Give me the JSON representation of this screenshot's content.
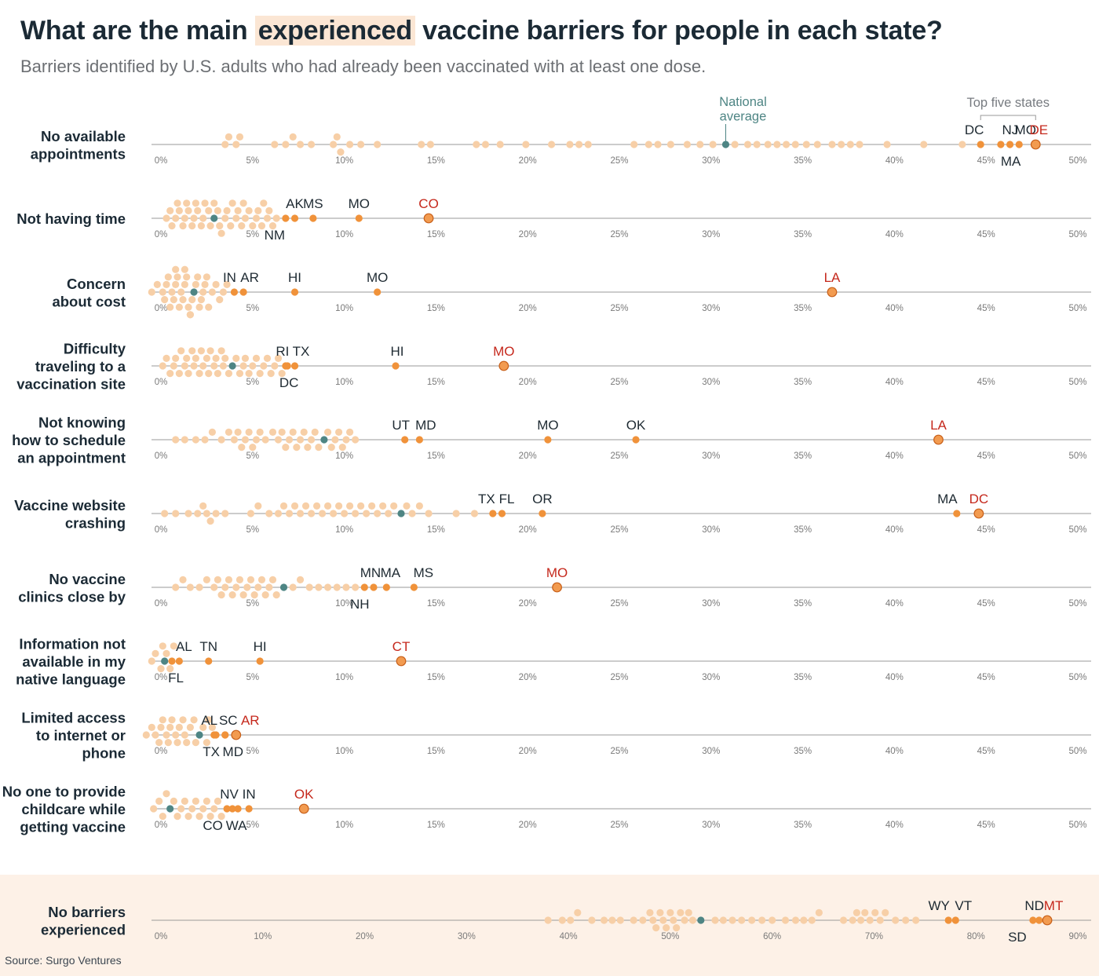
{
  "title": {
    "before": "What are the main ",
    "highlight": "experienced",
    "after": " vaccine barriers for people in each state?"
  },
  "subtitle": "Barriers identified by U.S. adults who had already been vaccinated with at least one dose.",
  "source": "Source: Surgo Ventures",
  "colors": {
    "dot": "#f7cfa7",
    "highlight": "#f0923a",
    "top": "#f29b50",
    "top_stroke": "#c8601a",
    "national": "#4e8584",
    "label": "#1e2a32",
    "top_label": "#c5281c",
    "axis": "#9a9a9a",
    "tick": "#7a7a7a",
    "band": "#fdf1e7"
  },
  "annotations": {
    "national_average": [
      "National",
      "average"
    ],
    "top_five": "Top five states"
  },
  "chart_data": [
    {
      "type": "scatter",
      "subtype": "beeswarm",
      "label": [
        "No available",
        "appointments"
      ],
      "xlim": [
        0,
        50
      ],
      "ticks": [
        0,
        5,
        10,
        15,
        20,
        25,
        30,
        35,
        40,
        45,
        50
      ],
      "national_average": 30.8,
      "values": [
        3.5,
        3.7,
        4.1,
        4.3,
        6.2,
        6.8,
        7.2,
        7.6,
        8.2,
        9.4,
        9.6,
        9.8,
        10.3,
        10.9,
        11.8,
        14.2,
        14.7,
        17.2,
        17.7,
        18.5,
        19.9,
        21.3,
        22.3,
        22.8,
        23.3,
        25.8,
        26.6,
        27.1,
        27.8,
        28.7,
        29.4,
        30.1,
        31.3,
        32.0,
        32.5,
        33.1,
        33.6,
        34.1,
        34.6,
        35.2,
        35.8,
        36.6,
        37.1,
        37.6,
        38.1,
        39.6,
        41.6,
        43.7
      ],
      "highlighted": [
        {
          "state": "DC",
          "value": 44.7
        },
        {
          "state": "NJ",
          "value": 45.8
        },
        {
          "state": "MA",
          "value": 46.3
        },
        {
          "state": "MO",
          "value": 46.8
        },
        {
          "state": "DE",
          "value": 47.7,
          "top": true
        }
      ]
    },
    {
      "type": "scatter",
      "subtype": "beeswarm",
      "label": [
        "Not having time"
      ],
      "xlim": [
        0,
        50
      ],
      "ticks": [
        0,
        5,
        10,
        15,
        20,
        25,
        30,
        35,
        40,
        45,
        50
      ],
      "national_average": 2.9,
      "values": [
        0.3,
        0.5,
        0.6,
        0.8,
        0.9,
        1.0,
        1.2,
        1.3,
        1.4,
        1.5,
        1.7,
        1.8,
        1.9,
        2.0,
        2.2,
        2.3,
        2.4,
        2.6,
        2.7,
        2.9,
        3.1,
        3.2,
        3.3,
        3.5,
        3.6,
        3.8,
        3.9,
        4.1,
        4.2,
        4.4,
        4.5,
        4.6,
        4.8,
        5.0,
        5.2,
        5.3,
        5.5,
        5.6,
        5.8,
        5.9,
        6.1,
        6.3
      ],
      "highlighted": [
        {
          "state": "NM",
          "value": 6.8
        },
        {
          "state": "AK",
          "value": 7.3
        },
        {
          "state": "MS",
          "value": 8.3
        },
        {
          "state": "MO",
          "value": 10.8
        },
        {
          "state": "CO",
          "value": 14.6,
          "top": true
        }
      ]
    },
    {
      "type": "scatter",
      "subtype": "beeswarm",
      "label": [
        "Concern",
        "about cost"
      ],
      "xlim": [
        0,
        50
      ],
      "ticks": [
        0,
        5,
        10,
        15,
        20,
        25,
        30,
        35,
        40,
        45,
        50
      ],
      "national_average": 1.8,
      "values": [
        -0.5,
        -0.2,
        0.1,
        0.2,
        0.3,
        0.4,
        0.5,
        0.6,
        0.7,
        0.8,
        0.8,
        0.9,
        1.0,
        1.1,
        1.2,
        1.3,
        1.3,
        1.4,
        1.5,
        1.6,
        1.6,
        1.7,
        1.9,
        2.0,
        2.1,
        2.2,
        2.3,
        2.4,
        2.5,
        2.6,
        2.8,
        3.0,
        3.2,
        3.4,
        3.6
      ],
      "highlighted": [
        {
          "state": "IN",
          "value": 4.0
        },
        {
          "state": "AR",
          "value": 4.5
        },
        {
          "state": "HI",
          "value": 7.3
        },
        {
          "state": "MO",
          "value": 11.8
        },
        {
          "state": "LA",
          "value": 36.6,
          "top": true
        }
      ]
    },
    {
      "type": "scatter",
      "subtype": "beeswarm",
      "label": [
        "Difficulty",
        "traveling to a",
        "vaccination site"
      ],
      "xlim": [
        0,
        50
      ],
      "ticks": [
        0,
        5,
        10,
        15,
        20,
        25,
        30,
        35,
        40,
        45,
        50
      ],
      "national_average": 3.9,
      "values": [
        0.1,
        0.3,
        0.5,
        0.7,
        0.8,
        1.0,
        1.1,
        1.3,
        1.4,
        1.5,
        1.7,
        1.8,
        1.9,
        2.1,
        2.2,
        2.3,
        2.5,
        2.6,
        2.7,
        2.9,
        3.0,
        3.1,
        3.3,
        3.4,
        3.5,
        3.7,
        4.1,
        4.3,
        4.5,
        4.6,
        4.8,
        5.0,
        5.2,
        5.4,
        5.6,
        5.8,
        6.0,
        6.2,
        6.4,
        6.6
      ],
      "highlighted": [
        {
          "state": "RI",
          "value": 6.8
        },
        {
          "state": "DC",
          "value": 6.9
        },
        {
          "state": "TX",
          "value": 7.3
        },
        {
          "state": "HI",
          "value": 12.8
        },
        {
          "state": "MO",
          "value": 18.7,
          "top": true
        }
      ]
    },
    {
      "type": "scatter",
      "subtype": "beeswarm",
      "label": [
        "Not knowing",
        "how to schedule",
        "an appointment"
      ],
      "xlim": [
        0,
        50
      ],
      "ticks": [
        0,
        5,
        10,
        15,
        20,
        25,
        30,
        35,
        40,
        45,
        50
      ],
      "national_average": 8.9,
      "values": [
        0.8,
        1.3,
        1.9,
        2.4,
        2.8,
        3.3,
        3.7,
        4.0,
        4.2,
        4.4,
        4.6,
        4.8,
        5.0,
        5.2,
        5.4,
        5.7,
        6.1,
        6.4,
        6.6,
        6.8,
        7.0,
        7.2,
        7.4,
        7.6,
        7.8,
        8.0,
        8.2,
        8.4,
        8.6,
        9.1,
        9.3,
        9.5,
        9.7,
        9.9,
        10.1,
        10.3,
        10.6
      ],
      "highlighted": [
        {
          "state": "UT",
          "value": 13.3
        },
        {
          "state": "MD",
          "value": 14.1
        },
        {
          "state": "MO",
          "value": 21.1
        },
        {
          "state": "OK",
          "value": 25.9
        },
        {
          "state": "LA",
          "value": 42.4,
          "top": true
        }
      ]
    },
    {
      "type": "scatter",
      "subtype": "beeswarm",
      "label": [
        "Vaccine website",
        "crashing"
      ],
      "xlim": [
        0,
        50
      ],
      "ticks": [
        0,
        5,
        10,
        15,
        20,
        25,
        30,
        35,
        40,
        45,
        50
      ],
      "national_average": 13.1,
      "values": [
        0.2,
        0.8,
        1.5,
        2.0,
        2.3,
        2.5,
        2.7,
        3.0,
        3.5,
        4.9,
        5.3,
        5.9,
        6.4,
        6.7,
        7.0,
        7.3,
        7.6,
        7.9,
        8.2,
        8.5,
        8.8,
        9.1,
        9.4,
        9.7,
        10.0,
        10.3,
        10.6,
        10.9,
        11.2,
        11.5,
        11.8,
        12.1,
        12.4,
        12.7,
        13.4,
        13.7,
        14.1,
        14.6,
        16.1,
        17.1
      ],
      "highlighted": [
        {
          "state": "TX",
          "value": 18.1
        },
        {
          "state": "FL",
          "value": 18.6
        },
        {
          "state": "OR",
          "value": 20.8
        },
        {
          "state": "MA",
          "value": 43.4
        },
        {
          "state": "DC",
          "value": 44.6,
          "top": true
        }
      ]
    },
    {
      "type": "scatter",
      "subtype": "beeswarm",
      "label": [
        "No vaccine",
        "clinics close by"
      ],
      "xlim": [
        0,
        50
      ],
      "ticks": [
        0,
        5,
        10,
        15,
        20,
        25,
        30,
        35,
        40,
        45,
        50
      ],
      "national_average": 6.7,
      "values": [
        0.8,
        1.2,
        1.6,
        2.1,
        2.5,
        2.9,
        3.1,
        3.3,
        3.5,
        3.7,
        3.9,
        4.1,
        4.3,
        4.5,
        4.7,
        4.9,
        5.1,
        5.3,
        5.5,
        5.7,
        5.9,
        6.1,
        6.3,
        7.2,
        7.6,
        8.1,
        8.6,
        9.1,
        9.6,
        10.1,
        10.6
      ],
      "highlighted": [
        {
          "state": "NH",
          "value": 11.1
        },
        {
          "state": "MN",
          "value": 11.6
        },
        {
          "state": "MA",
          "value": 12.3
        },
        {
          "state": "MS",
          "value": 13.8
        },
        {
          "state": "MO",
          "value": 21.6,
          "top": true
        }
      ]
    },
    {
      "type": "scatter",
      "subtype": "beeswarm",
      "label": [
        "Information not",
        "available in my",
        "native language"
      ],
      "xlim": [
        0,
        50
      ],
      "ticks": [
        0,
        5,
        10,
        15,
        20,
        25,
        30,
        35,
        40,
        45,
        50
      ],
      "national_average": 0.2,
      "values": [
        -0.5,
        -0.3,
        0.0,
        0.1,
        0.3,
        0.5,
        0.7
      ],
      "highlighted": [
        {
          "state": "FL",
          "value": 0.6
        },
        {
          "state": "AL",
          "value": 1.0
        },
        {
          "state": "TN",
          "value": 2.6
        },
        {
          "state": "HI",
          "value": 5.4
        },
        {
          "state": "CT",
          "value": 13.1,
          "top": true
        }
      ]
    },
    {
      "type": "scatter",
      "subtype": "beeswarm",
      "label": [
        "Limited access",
        "to internet or",
        "phone"
      ],
      "xlim": [
        0,
        50
      ],
      "ticks": [
        0,
        5,
        10,
        15,
        20,
        25,
        30,
        35,
        40,
        45,
        50
      ],
      "national_average": 2.1,
      "values": [
        -0.8,
        -0.5,
        -0.3,
        -0.1,
        0.0,
        0.1,
        0.3,
        0.4,
        0.5,
        0.6,
        0.8,
        0.9,
        1.0,
        1.2,
        1.3,
        1.4,
        1.6,
        1.8,
        1.9,
        2.3,
        2.5,
        2.6,
        2.8
      ],
      "highlighted": [
        {
          "state": "AL",
          "value": 2.9
        },
        {
          "state": "TX",
          "value": 3.0
        },
        {
          "state": "SC",
          "value": 3.5
        },
        {
          "state": "MD",
          "value": 3.5
        },
        {
          "state": "AR",
          "value": 4.1,
          "top": true
        }
      ]
    },
    {
      "type": "scatter",
      "subtype": "beeswarm",
      "label": [
        "No one to provide",
        "childcare while",
        "getting vaccine"
      ],
      "xlim": [
        0,
        50
      ],
      "ticks": [
        0,
        5,
        10,
        15,
        20,
        25,
        30,
        35,
        40,
        45,
        50
      ],
      "national_average": 0.5,
      "values": [
        -0.4,
        -0.1,
        0.1,
        0.3,
        0.7,
        0.9,
        1.1,
        1.3,
        1.5,
        1.7,
        1.9,
        2.1,
        2.3,
        2.5,
        2.7,
        2.9,
        3.1,
        3.3
      ],
      "highlighted": [
        {
          "state": "CO",
          "value": 3.6
        },
        {
          "state": "NV",
          "value": 3.9
        },
        {
          "state": "WA",
          "value": 4.2
        },
        {
          "state": "IN",
          "value": 4.8
        },
        {
          "state": "OK",
          "value": 7.8,
          "top": true
        }
      ]
    },
    {
      "type": "scatter",
      "subtype": "beeswarm",
      "label": [
        "No barriers",
        "experienced"
      ],
      "xlim": [
        0,
        90
      ],
      "ticks": [
        0,
        10,
        20,
        30,
        40,
        50,
        60,
        70,
        80,
        90
      ],
      "national_average": 53.0,
      "highlight_band": true,
      "values": [
        38.0,
        39.4,
        40.2,
        40.9,
        42.3,
        43.5,
        44.3,
        45.1,
        46.4,
        47.3,
        48.0,
        48.3,
        48.6,
        49.0,
        49.3,
        49.6,
        50.0,
        50.3,
        50.6,
        51.0,
        51.4,
        51.8,
        52.2,
        54.4,
        55.2,
        56.1,
        57.0,
        58.0,
        59.0,
        60.0,
        61.3,
        62.3,
        63.1,
        63.9,
        64.6,
        67.0,
        67.9,
        68.3,
        68.7,
        69.1,
        69.6,
        70.1,
        70.6,
        71.1,
        72.1,
        73.1,
        74.1
      ],
      "highlighted": [
        {
          "state": "WY",
          "value": 77.3
        },
        {
          "state": "VT",
          "value": 78.0
        },
        {
          "state": "SD",
          "value": 85.6
        },
        {
          "state": "ND",
          "value": 86.2
        },
        {
          "state": "MT",
          "value": 87.0,
          "top": true
        }
      ]
    }
  ]
}
